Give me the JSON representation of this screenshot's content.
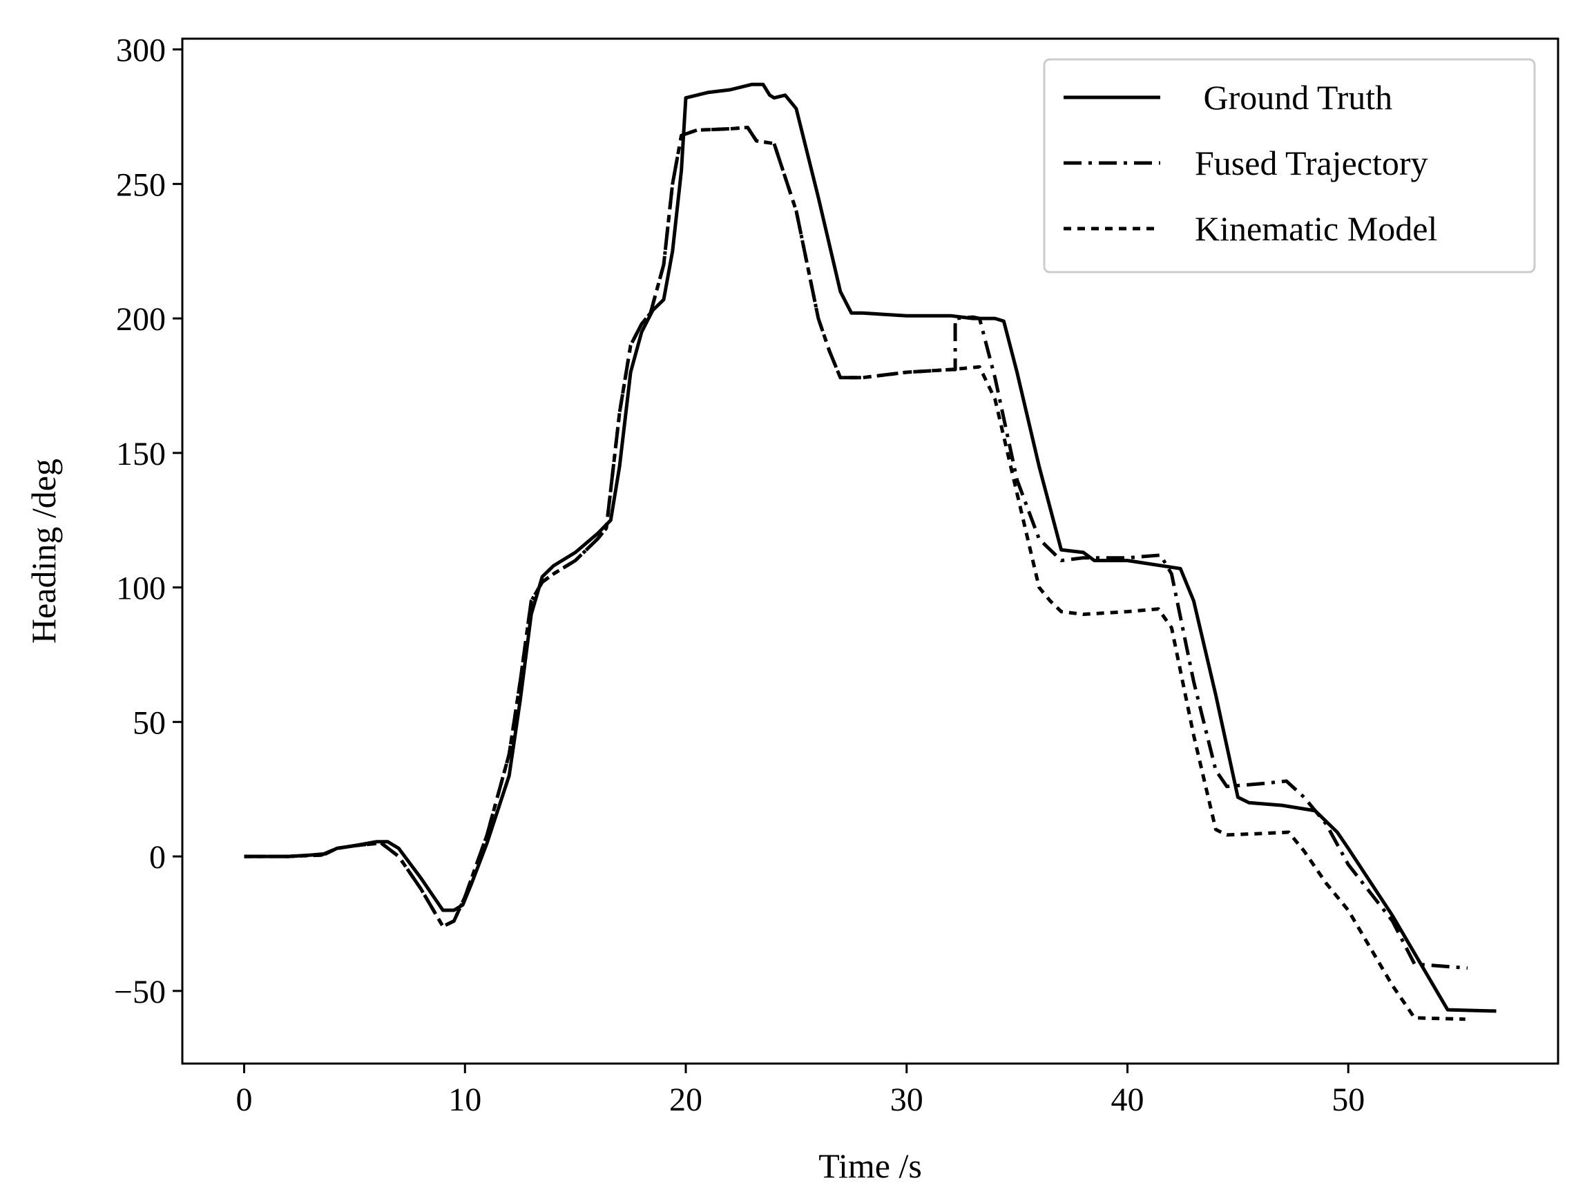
{
  "chart_data": {
    "type": "line",
    "title": "",
    "xlabel": "Time /s",
    "ylabel": "Heading /deg",
    "xlim": [
      -2.8,
      59.5
    ],
    "ylim": [
      -77,
      304
    ],
    "xticks": [
      0,
      10,
      20,
      30,
      40,
      50
    ],
    "yticks": [
      -50,
      0,
      50,
      100,
      150,
      200,
      250,
      300
    ],
    "xtick_labels": [
      "0",
      "10",
      "20",
      "30",
      "40",
      "50"
    ],
    "ytick_labels": [
      "−50",
      "0",
      "50",
      "100",
      "150",
      "200",
      "250",
      "300"
    ],
    "grid": false,
    "legend_position": "top-right",
    "series": [
      {
        "name": " Ground Truth",
        "style": "solid",
        "points": [
          [
            0,
            0
          ],
          [
            2,
            0
          ],
          [
            3,
            0.5
          ],
          [
            3.7,
            1
          ],
          [
            4.2,
            3
          ],
          [
            5,
            4
          ],
          [
            6,
            5.5
          ],
          [
            6.5,
            5.5
          ],
          [
            7,
            3
          ],
          [
            8,
            -8
          ],
          [
            9,
            -20
          ],
          [
            9.5,
            -20
          ],
          [
            9.9,
            -18
          ],
          [
            10.3,
            -10
          ],
          [
            11,
            5
          ],
          [
            12,
            30
          ],
          [
            12.5,
            58
          ],
          [
            13,
            90
          ],
          [
            13.5,
            104
          ],
          [
            14,
            108
          ],
          [
            15,
            113
          ],
          [
            16,
            120
          ],
          [
            16.6,
            125
          ],
          [
            17,
            145
          ],
          [
            17.5,
            180
          ],
          [
            18,
            195
          ],
          [
            18.5,
            203
          ],
          [
            19,
            207
          ],
          [
            19.4,
            225
          ],
          [
            19.8,
            255
          ],
          [
            20,
            282
          ],
          [
            20.5,
            283
          ],
          [
            21,
            284
          ],
          [
            22,
            285
          ],
          [
            23,
            287
          ],
          [
            23.5,
            287
          ],
          [
            23.8,
            283
          ],
          [
            24,
            282
          ],
          [
            24.5,
            283
          ],
          [
            25,
            278
          ],
          [
            26,
            245
          ],
          [
            27,
            210
          ],
          [
            27.5,
            202
          ],
          [
            28,
            202
          ],
          [
            30,
            201
          ],
          [
            32,
            201
          ],
          [
            33,
            200
          ],
          [
            34,
            200
          ],
          [
            34.4,
            199
          ],
          [
            35,
            180
          ],
          [
            36,
            145
          ],
          [
            37,
            114
          ],
          [
            38,
            113
          ],
          [
            38.5,
            110
          ],
          [
            40,
            110
          ],
          [
            42.4,
            107
          ],
          [
            43,
            95
          ],
          [
            44,
            60
          ],
          [
            45,
            22
          ],
          [
            45.5,
            20
          ],
          [
            47,
            19
          ],
          [
            48.5,
            17
          ],
          [
            49.5,
            9
          ],
          [
            50,
            3
          ],
          [
            52,
            -22
          ],
          [
            54,
            -50
          ],
          [
            54.5,
            -57
          ],
          [
            56.7,
            -57.5
          ]
        ]
      },
      {
        "name": "Fused Trajectory",
        "style": "dashdot",
        "points": [
          [
            0,
            0
          ],
          [
            2,
            0
          ],
          [
            3.5,
            0.5
          ],
          [
            4.2,
            3
          ],
          [
            5,
            4
          ],
          [
            6.2,
            5
          ],
          [
            7,
            0
          ],
          [
            8,
            -12
          ],
          [
            9,
            -26
          ],
          [
            9.5,
            -24
          ],
          [
            10,
            -15
          ],
          [
            11,
            8
          ],
          [
            12,
            38
          ],
          [
            12.5,
            65
          ],
          [
            13,
            95
          ],
          [
            13.5,
            102
          ],
          [
            14,
            105
          ],
          [
            15,
            110
          ],
          [
            16,
            118
          ],
          [
            16.4,
            122
          ],
          [
            17,
            165
          ],
          [
            17.5,
            190
          ],
          [
            18,
            198
          ],
          [
            18.4,
            202
          ],
          [
            19,
            220
          ],
          [
            19.4,
            250
          ],
          [
            19.8,
            268
          ],
          [
            20.5,
            270
          ],
          [
            22,
            270.5
          ],
          [
            22.8,
            271
          ],
          [
            23.2,
            266
          ],
          [
            24,
            265
          ],
          [
            25,
            240
          ],
          [
            26,
            200
          ],
          [
            26.5,
            188
          ],
          [
            27,
            178
          ],
          [
            28,
            178
          ],
          [
            29,
            179
          ],
          [
            30,
            180
          ],
          [
            32,
            181
          ],
          [
            32.2,
            181
          ],
          [
            32.2,
            200
          ],
          [
            33,
            200.5
          ],
          [
            33.3,
            200
          ],
          [
            34,
            178
          ],
          [
            35,
            140
          ],
          [
            36,
            118
          ],
          [
            37,
            110
          ],
          [
            38,
            111
          ],
          [
            40,
            111
          ],
          [
            41.5,
            112
          ],
          [
            42,
            105
          ],
          [
            43,
            65
          ],
          [
            44,
            32
          ],
          [
            44.5,
            26
          ],
          [
            46,
            27
          ],
          [
            47.2,
            28
          ],
          [
            48,
            22
          ],
          [
            49,
            12
          ],
          [
            50,
            -3
          ],
          [
            52,
            -24
          ],
          [
            53,
            -40
          ],
          [
            55.4,
            -41.5
          ]
        ]
      },
      {
        "name": "Kinematic Model",
        "style": "dotted",
        "points": [
          [
            0,
            0
          ],
          [
            2,
            0
          ],
          [
            3.5,
            0.5
          ],
          [
            4.2,
            3
          ],
          [
            5,
            4
          ],
          [
            6.2,
            5
          ],
          [
            7,
            0
          ],
          [
            8,
            -12
          ],
          [
            9,
            -26
          ],
          [
            9.5,
            -24
          ],
          [
            10,
            -15
          ],
          [
            11,
            8
          ],
          [
            12,
            38
          ],
          [
            12.5,
            65
          ],
          [
            13,
            95
          ],
          [
            13.5,
            102
          ],
          [
            14,
            105
          ],
          [
            15,
            110
          ],
          [
            16,
            118
          ],
          [
            16.4,
            122
          ],
          [
            17,
            165
          ],
          [
            17.5,
            190
          ],
          [
            18,
            198
          ],
          [
            18.4,
            202
          ],
          [
            19,
            220
          ],
          [
            19.4,
            250
          ],
          [
            19.8,
            268
          ],
          [
            20.5,
            270
          ],
          [
            22,
            270.5
          ],
          [
            22.8,
            271
          ],
          [
            23.2,
            266
          ],
          [
            24,
            265
          ],
          [
            25,
            240
          ],
          [
            26,
            200
          ],
          [
            26.5,
            188
          ],
          [
            27,
            178
          ],
          [
            28,
            178
          ],
          [
            29,
            179
          ],
          [
            30,
            180
          ],
          [
            32,
            181
          ],
          [
            33.3,
            182
          ],
          [
            34,
            170
          ],
          [
            35,
            135
          ],
          [
            36,
            100
          ],
          [
            36.5,
            95
          ],
          [
            37,
            91
          ],
          [
            38,
            90
          ],
          [
            40,
            91
          ],
          [
            41.4,
            92
          ],
          [
            42,
            85
          ],
          [
            43,
            45
          ],
          [
            44,
            10
          ],
          [
            44.5,
            8
          ],
          [
            46,
            8.5
          ],
          [
            47.3,
            9
          ],
          [
            48,
            2
          ],
          [
            49,
            -10
          ],
          [
            50,
            -20
          ],
          [
            52,
            -48
          ],
          [
            53,
            -60
          ],
          [
            55.3,
            -60.5
          ]
        ]
      }
    ]
  }
}
